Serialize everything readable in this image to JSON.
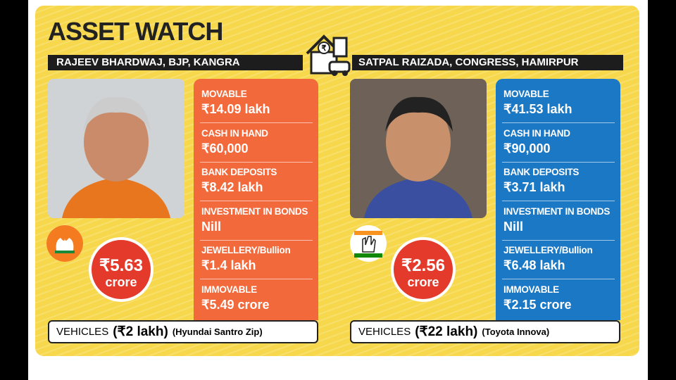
{
  "title": "ASSET WATCH",
  "candidates": [
    {
      "name": "RAJEEV BHARDWAJ, BJP, KANGRA",
      "assets": [
        {
          "label": "MOVABLE",
          "value": "₹14.09 lakh"
        },
        {
          "label": "CASH IN HAND",
          "value": "₹60,000"
        },
        {
          "label": "BANK DEPOSITS",
          "value": "₹8.42 lakh"
        },
        {
          "label": "INVESTMENT IN BONDS",
          "value": "Nill"
        },
        {
          "label": "JEWELLERY/Bullion",
          "value": "₹1.4 lakh"
        },
        {
          "label": "IMMOVABLE",
          "value": "₹5.49 crore"
        }
      ],
      "total": {
        "amount": "₹5.63",
        "unit": "crore"
      },
      "vehicles": {
        "label": "VEHICLES",
        "value": "(₹2 lakh)",
        "model": "(Hyundai Santro Zip)"
      }
    },
    {
      "name": "SATPAL RAIZADA, CONGRESS, HAMIRPUR",
      "assets": [
        {
          "label": "MOVABLE",
          "value": "₹41.53 lakh"
        },
        {
          "label": "CASH IN HAND",
          "value": "₹90,000"
        },
        {
          "label": "BANK DEPOSITS",
          "value": "₹3.71 lakh"
        },
        {
          "label": "INVESTMENT IN BONDS",
          "value": "Nill"
        },
        {
          "label": "JEWELLERY/Bullion",
          "value": "₹6.48 lakh"
        },
        {
          "label": "IMMOVABLE",
          "value": "₹2.15 crore"
        }
      ],
      "total": {
        "amount": "₹2.56",
        "unit": "crore"
      },
      "vehicles": {
        "label": "VEHICLES",
        "value": "(₹22 lakh)",
        "model": "(Toyota Innova)"
      }
    }
  ]
}
